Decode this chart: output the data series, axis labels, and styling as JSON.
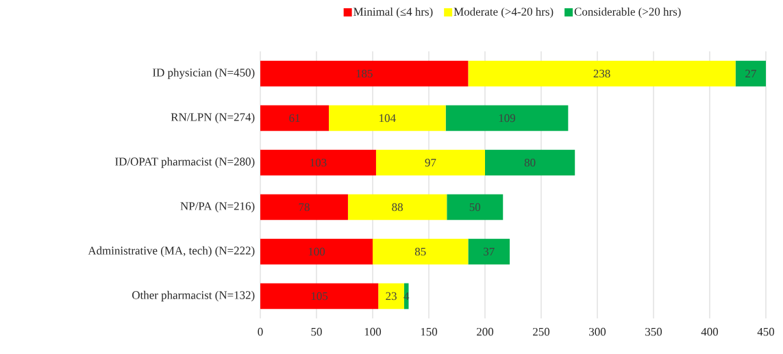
{
  "chart_data": {
    "type": "bar",
    "orientation": "horizontal",
    "stacked": true,
    "categories": [
      "ID physician (N=450)",
      "RN/LPN (N=274)",
      "ID/OPAT pharmacist (N=280)",
      "NP/PA (N=216)",
      "Administrative (MA, tech) (N=222)",
      "Other pharmacist (N=132)"
    ],
    "series": [
      {
        "name": "Minimal (≤4 hrs)",
        "color": "#ff0000",
        "values": [
          185,
          61,
          103,
          78,
          100,
          105
        ]
      },
      {
        "name": "Moderate (>4-20 hrs)",
        "color": "#ffff00",
        "values": [
          238,
          104,
          97,
          88,
          85,
          23
        ]
      },
      {
        "name": "Considerable (>20 hrs)",
        "color": "#00b050",
        "values": [
          27,
          109,
          80,
          50,
          37,
          4
        ]
      }
    ],
    "xlim": [
      0,
      450
    ],
    "xticks": [
      0,
      50,
      100,
      150,
      200,
      250,
      300,
      350,
      400,
      450
    ],
    "grid": "x",
    "legend": "top",
    "data_labels": true
  }
}
